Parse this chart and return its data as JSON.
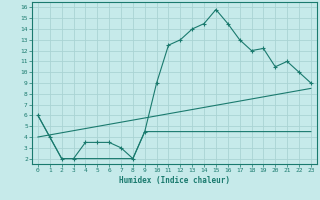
{
  "xlabel": "Humidex (Indice chaleur)",
  "bg_color": "#c6eaea",
  "grid_color": "#aad4d4",
  "line_color": "#1a7a6e",
  "xlim": [
    -0.5,
    23.5
  ],
  "ylim": [
    1.5,
    16.5
  ],
  "xticks": [
    0,
    1,
    2,
    3,
    4,
    5,
    6,
    7,
    8,
    9,
    10,
    11,
    12,
    13,
    14,
    15,
    16,
    17,
    18,
    19,
    20,
    21,
    22,
    23
  ],
  "yticks": [
    2,
    3,
    4,
    5,
    6,
    7,
    8,
    9,
    10,
    11,
    12,
    13,
    14,
    15,
    16
  ],
  "line_main": {
    "x": [
      0,
      1,
      2,
      3,
      4,
      5,
      6,
      7,
      8,
      9,
      10,
      11,
      12,
      13,
      14,
      15,
      16,
      17,
      18,
      19,
      20,
      21,
      22,
      23
    ],
    "y": [
      6,
      4,
      2,
      2,
      3.5,
      3.5,
      3.5,
      3,
      2,
      4.5,
      9,
      12.5,
      13,
      14,
      14.5,
      15.8,
      14.5,
      13,
      12,
      12.2,
      10.5,
      11,
      10,
      9
    ]
  },
  "line_regression": {
    "x": [
      0,
      23
    ],
    "y": [
      4,
      8.5
    ]
  },
  "line_stepped": {
    "x": [
      0,
      1,
      2,
      3,
      4,
      5,
      6,
      7,
      8,
      9,
      10,
      11,
      12,
      13,
      14,
      15,
      16,
      17,
      18,
      19,
      20,
      21,
      22,
      23
    ],
    "y": [
      6,
      4,
      2,
      2,
      2,
      2,
      2,
      2,
      2,
      4.5,
      4.5,
      4.5,
      4.5,
      4.5,
      4.5,
      4.5,
      4.5,
      4.5,
      4.5,
      4.5,
      4.5,
      4.5,
      4.5,
      4.5
    ]
  }
}
